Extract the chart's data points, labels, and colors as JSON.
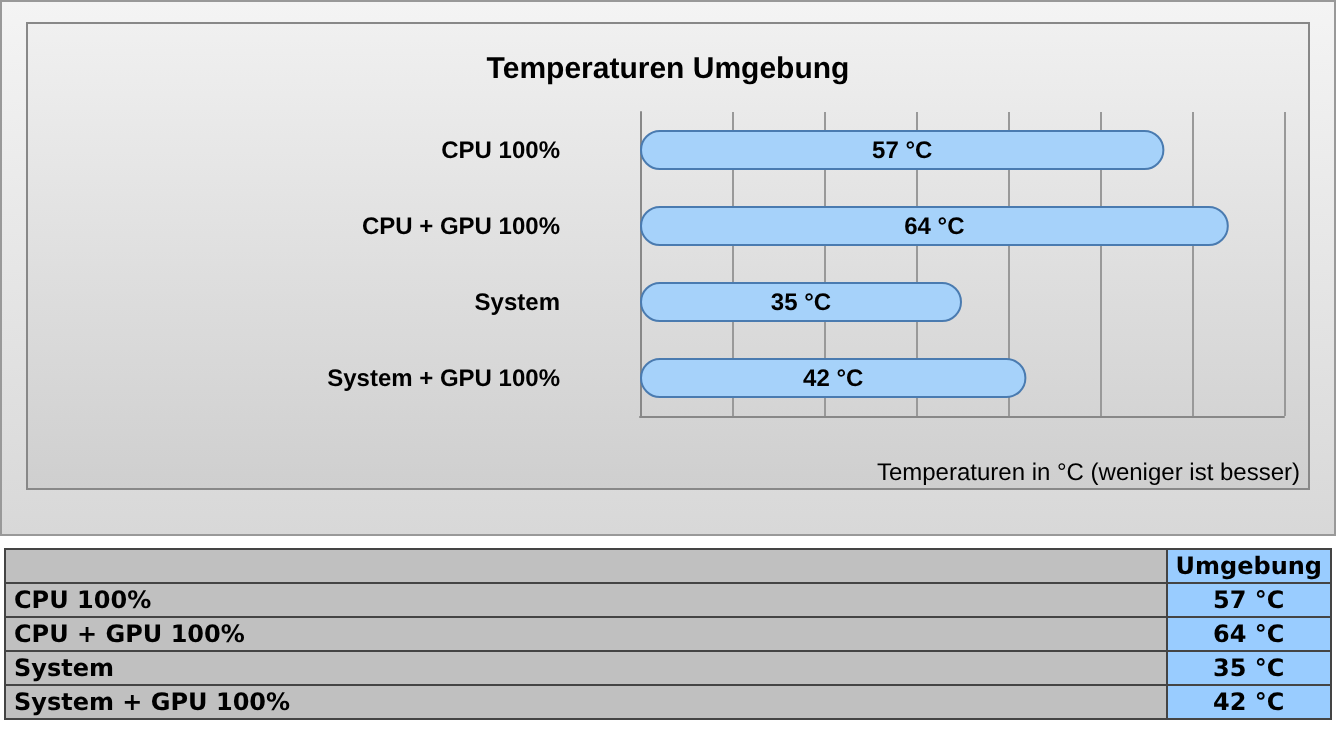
{
  "chart_data": {
    "type": "bar",
    "orientation": "horizontal",
    "title": "Temperaturen Umgebung",
    "xlabel": "Temperaturen in °C (weniger ist besser)",
    "categories": [
      "CPU 100%",
      "CPU + GPU 100%",
      "System",
      "System + GPU 100%"
    ],
    "series": [
      {
        "name": "Umgebung",
        "color": "#a6d2fa",
        "values": [
          57,
          64,
          35,
          42
        ],
        "value_labels": [
          "57 °C",
          "64 °C",
          "35 °C",
          "42 °C"
        ]
      }
    ],
    "xlim": [
      0,
      70
    ],
    "xticks": [
      {
        "value": 0,
        "label": null
      },
      {
        "value": 10,
        "label": null
      },
      {
        "value": 20,
        "label": null
      },
      {
        "value": 30,
        "label": null
      },
      {
        "value": 40,
        "label": null
      },
      {
        "value": 50,
        "label": null
      },
      {
        "value": 60,
        "label": null
      },
      {
        "value": 70,
        "label": null
      }
    ],
    "grid": "x",
    "legend": false,
    "tick_labels": "y"
  }
}
